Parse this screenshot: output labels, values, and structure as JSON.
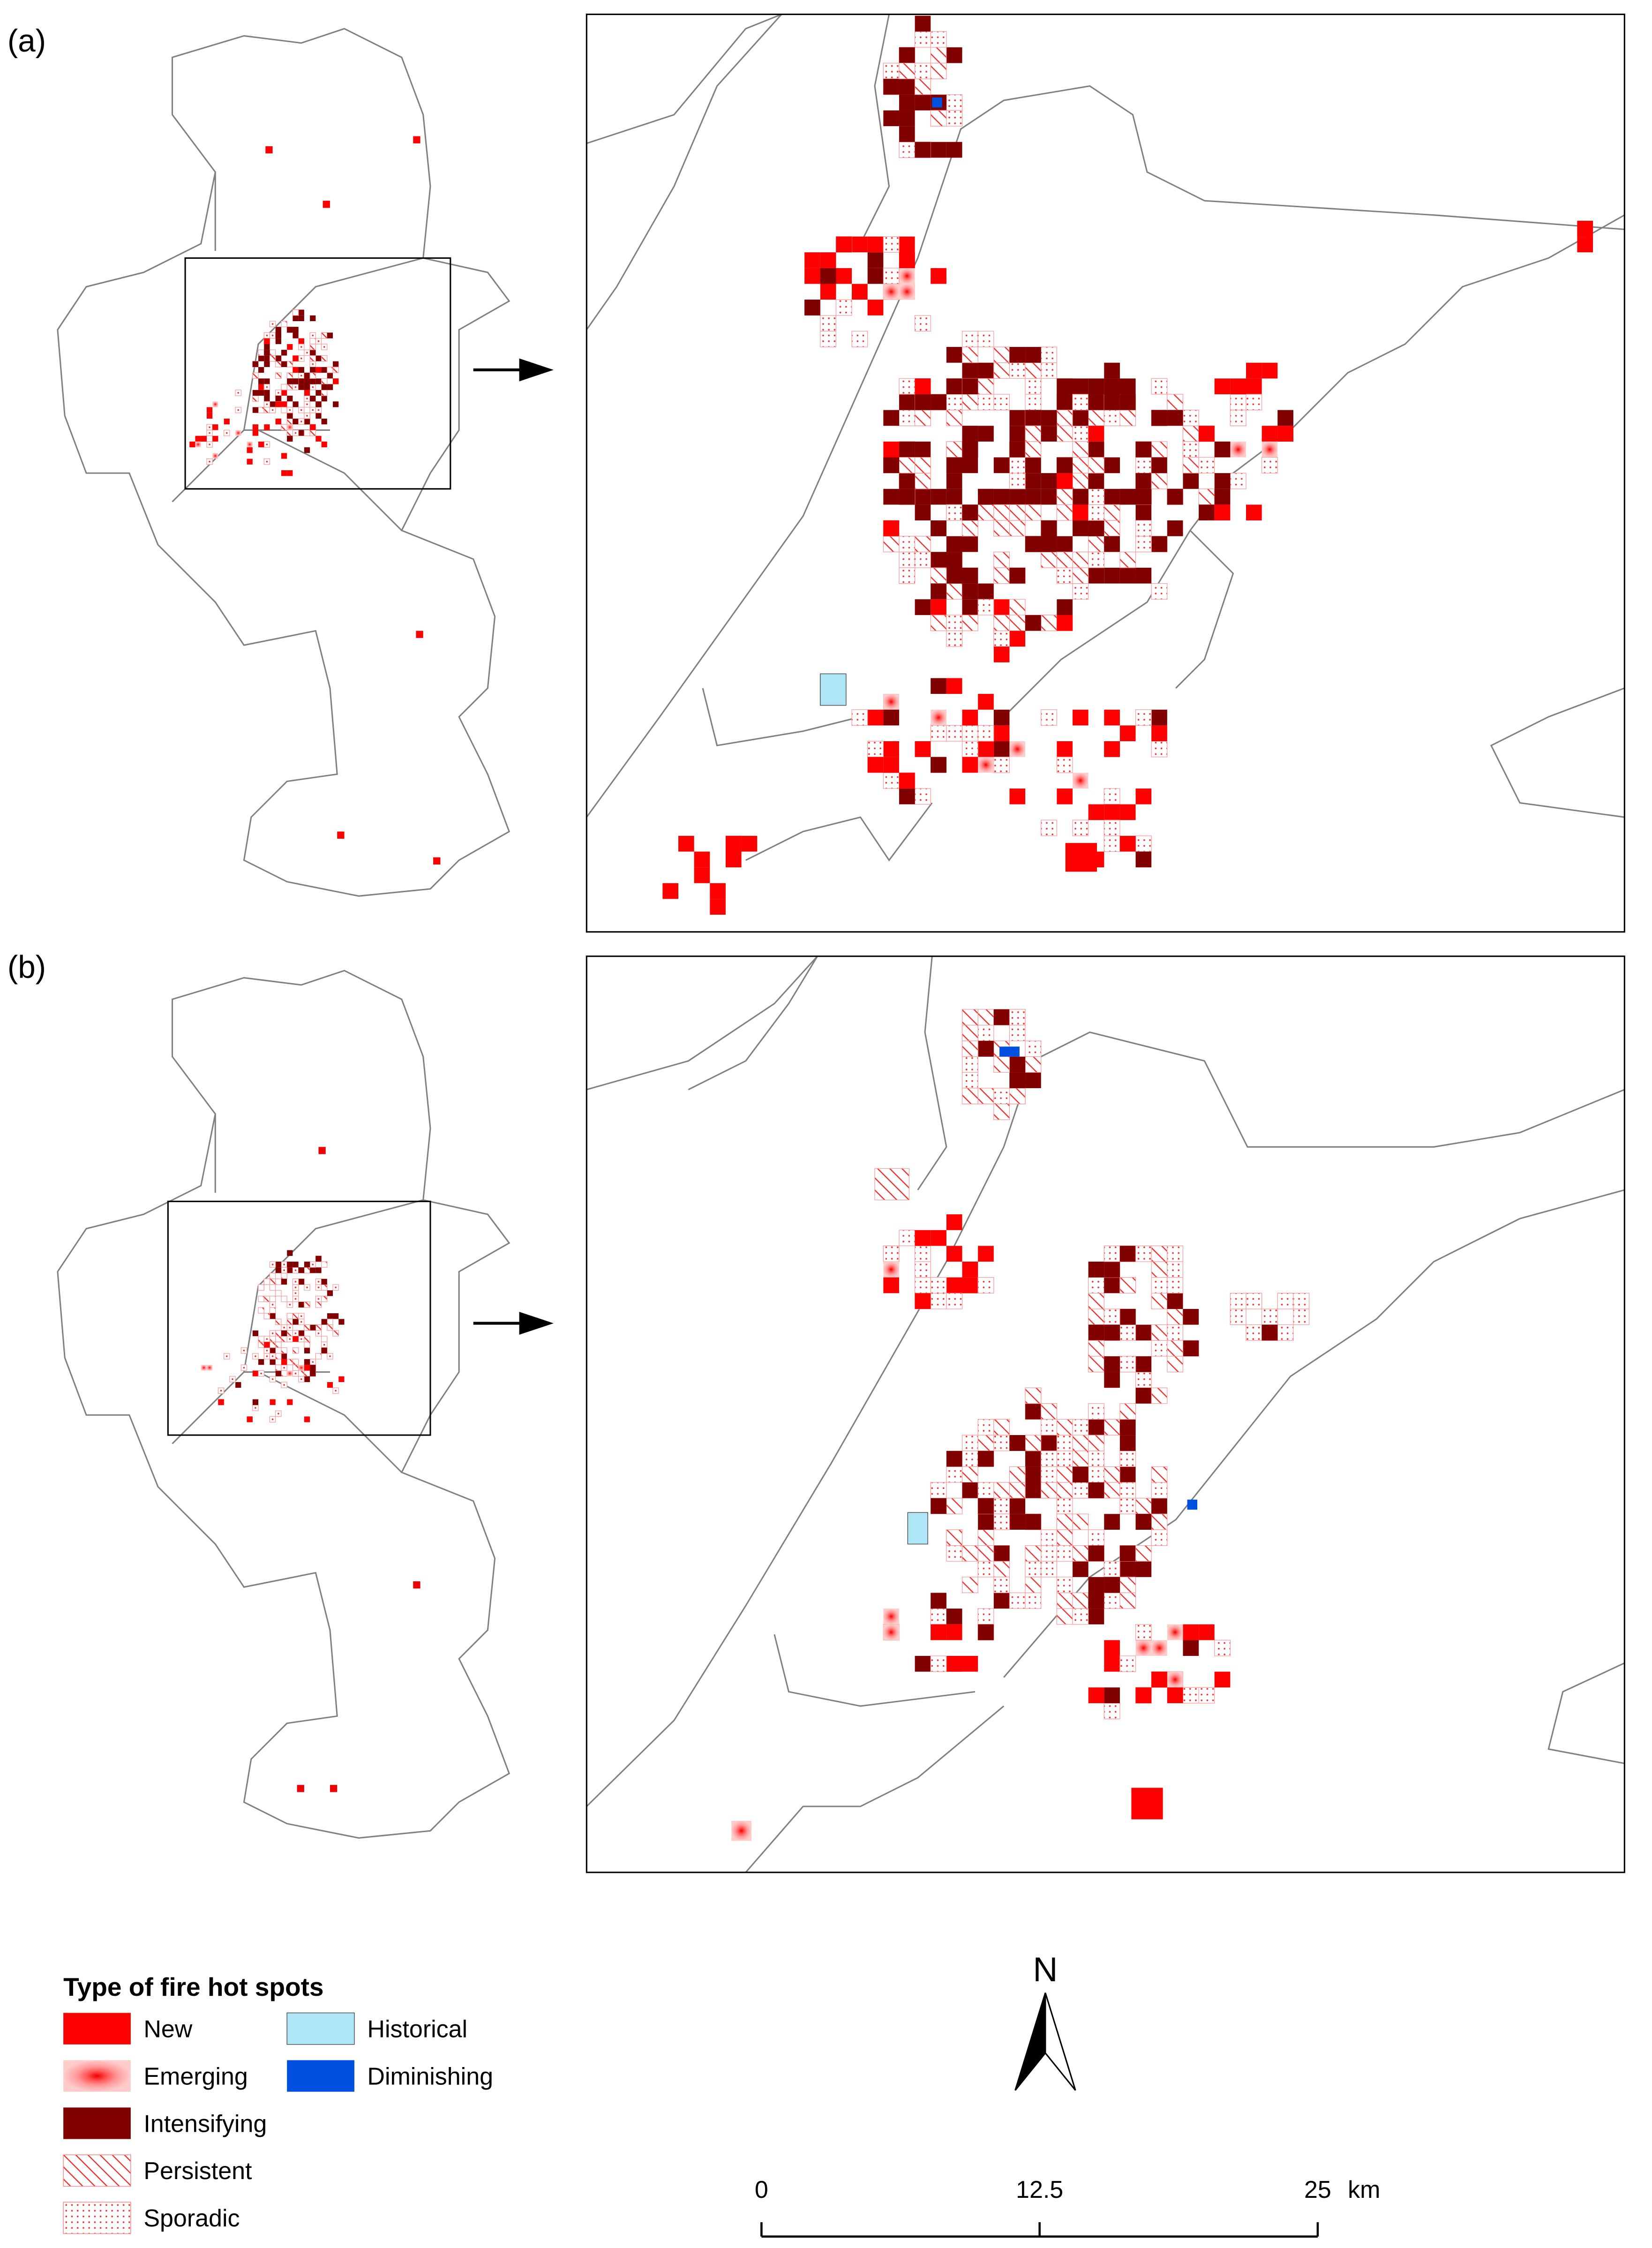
{
  "panels": [
    {
      "label": "(a)"
    },
    {
      "label": "(b)"
    }
  ],
  "legend": {
    "title": "Type of fire hot spots",
    "items": [
      "New",
      "Emerging",
      "Intensifying",
      "Persistent",
      "Sporadic",
      "Historical",
      "Diminishing"
    ]
  },
  "north_arrow": {
    "label": "N"
  },
  "scale_bar": {
    "ticks": [
      0,
      12.5,
      25
    ],
    "unit": "km"
  }
}
